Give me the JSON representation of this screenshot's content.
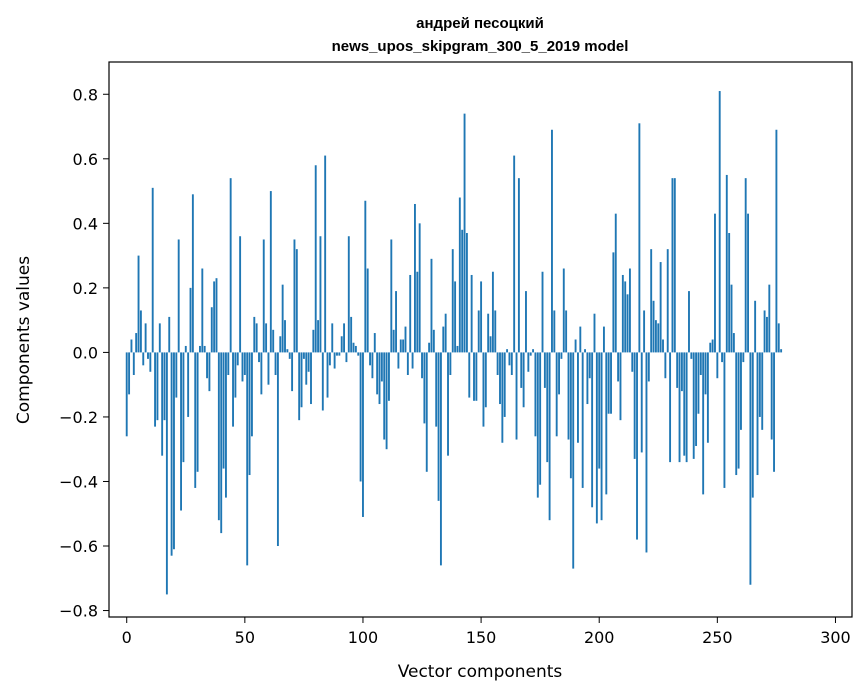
{
  "chart_data": {
    "type": "bar",
    "title": [
      "андрей песоцкий",
      "news_upos_skipgram_300_5_2019 model"
    ],
    "xlabel": "Vector components",
    "ylabel": "Components values",
    "xlim": [
      -7.5,
      307
    ],
    "ylim": [
      -0.82,
      0.9
    ],
    "x_ticks": [
      0,
      50,
      100,
      150,
      200,
      250,
      300
    ],
    "y_ticks": [
      -0.8,
      -0.6,
      -0.4,
      -0.2,
      0.0,
      0.2,
      0.4,
      0.6,
      0.8
    ],
    "y_tick_labels": [
      "−0.8",
      "−0.6",
      "−0.4",
      "−0.2",
      "0.0",
      "0.2",
      "0.4",
      "0.6",
      "0.8"
    ],
    "bar_color": "#1f77b4",
    "values": [
      -0.26,
      -0.13,
      0.04,
      -0.07,
      0.06,
      0.3,
      0.13,
      -0.04,
      0.09,
      -0.02,
      -0.06,
      0.51,
      -0.23,
      -0.21,
      0.09,
      -0.32,
      -0.21,
      -0.75,
      0.11,
      -0.63,
      -0.61,
      -0.14,
      0.35,
      -0.49,
      -0.34,
      0.02,
      -0.2,
      0.2,
      0.49,
      -0.42,
      -0.37,
      0.02,
      0.26,
      0.02,
      -0.08,
      -0.12,
      0.14,
      0.22,
      0.23,
      -0.52,
      -0.56,
      -0.36,
      -0.45,
      -0.07,
      0.54,
      -0.23,
      -0.14,
      -0.04,
      0.36,
      -0.09,
      -0.07,
      -0.66,
      -0.38,
      -0.26,
      0.11,
      0.09,
      -0.03,
      -0.13,
      0.35,
      0.09,
      -0.1,
      0.5,
      0.07,
      -0.07,
      -0.6,
      0.05,
      0.21,
      0.1,
      0.01,
      -0.02,
      -0.12,
      0.35,
      0.32,
      -0.21,
      -0.17,
      -0.02,
      -0.1,
      -0.06,
      -0.16,
      0.07,
      0.58,
      0.1,
      0.36,
      -0.18,
      0.61,
      -0.14,
      -0.04,
      0.09,
      -0.05,
      -0.01,
      -0.01,
      0.05,
      0.09,
      -0.03,
      0.36,
      0.11,
      0.03,
      0.02,
      -0.01,
      -0.4,
      -0.51,
      0.47,
      0.26,
      -0.04,
      -0.08,
      0.06,
      -0.13,
      -0.16,
      -0.09,
      -0.27,
      -0.3,
      -0.15,
      0.35,
      0.07,
      0.19,
      -0.05,
      0.04,
      0.04,
      0.08,
      -0.07,
      0.24,
      -0.05,
      0.46,
      0.25,
      0.4,
      -0.08,
      -0.22,
      -0.37,
      0.03,
      0.29,
      0.07,
      -0.23,
      -0.46,
      -0.66,
      0.08,
      0.12,
      -0.32,
      -0.07,
      0.32,
      0.22,
      0.02,
      0.48,
      0.38,
      0.74,
      0.37,
      -0.14,
      0.24,
      -0.15,
      -0.15,
      0.13,
      0.22,
      -0.23,
      -0.17,
      0.12,
      0.05,
      0.25,
      0.13,
      -0.07,
      -0.16,
      -0.28,
      -0.2,
      0.01,
      -0.04,
      -0.07,
      0.61,
      -0.27,
      0.54,
      -0.11,
      -0.17,
      0.19,
      -0.06,
      -0.01,
      0.01,
      -0.26,
      -0.45,
      -0.41,
      0.25,
      -0.11,
      -0.34,
      -0.52,
      0.69,
      0.13,
      -0.26,
      -0.13,
      -0.02,
      0.26,
      0.13,
      -0.27,
      -0.39,
      -0.67,
      0.04,
      -0.28,
      0.08,
      -0.42,
      0.01,
      -0.16,
      -0.08,
      -0.48,
      0.12,
      -0.53,
      -0.36,
      -0.52,
      0.08,
      -0.44,
      -0.19,
      -0.19,
      0.31,
      0.43,
      -0.09,
      -0.21,
      0.24,
      0.22,
      0.18,
      0.26,
      -0.06,
      -0.33,
      -0.58,
      0.71,
      -0.31,
      0.13,
      -0.62,
      -0.09,
      0.32,
      0.16,
      0.1,
      0.09,
      0.28,
      0.04,
      -0.08,
      0.32,
      -0.34,
      0.54,
      0.54,
      -0.11,
      -0.34,
      -0.12,
      -0.32,
      -0.34,
      0.19,
      -0.02,
      -0.33,
      -0.29,
      -0.19,
      -0.07,
      -0.44,
      -0.13,
      -0.28,
      0.03,
      0.04,
      0.43,
      -0.08,
      0.81,
      -0.03,
      -0.42,
      0.55,
      0.37,
      0.21,
      0.06,
      -0.38,
      -0.36,
      -0.24,
      -0.03,
      0.54,
      0.43,
      -0.72,
      -0.45,
      0.16,
      -0.38,
      -0.2,
      -0.24,
      0.13,
      0.11,
      0.21,
      -0.27,
      -0.37,
      0.69,
      0.09,
      0.01
    ]
  }
}
